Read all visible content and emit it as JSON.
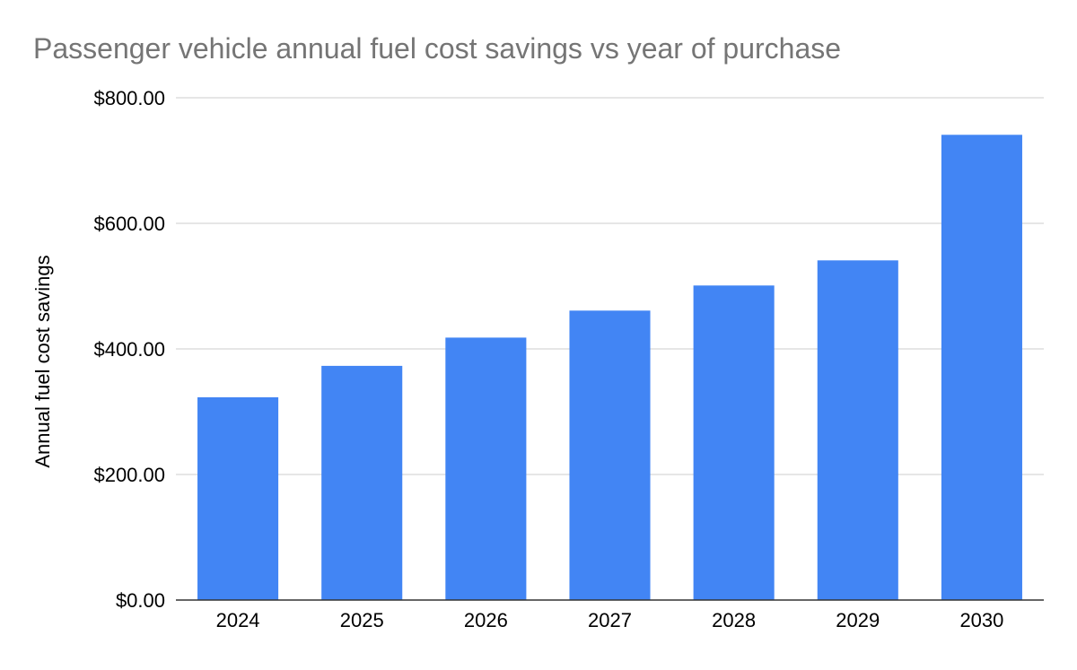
{
  "chart_data": {
    "type": "bar",
    "title": "Passenger vehicle annual fuel cost savings vs year of purchase",
    "xlabel": "",
    "ylabel": "Annual fuel cost savings",
    "categories": [
      "2024",
      "2025",
      "2026",
      "2027",
      "2028",
      "2029",
      "2030"
    ],
    "series": [
      {
        "values": [
          323,
          373,
          418,
          461,
          501,
          541,
          741
        ]
      }
    ],
    "ylim": [
      0,
      800
    ],
    "yticks": [
      0,
      200,
      400,
      600,
      800
    ],
    "ytick_labels": [
      "$0.00",
      "$200.00",
      "$400.00",
      "$600.00",
      "$800.00"
    ],
    "grid": true,
    "legend": "none",
    "colors": {
      "bar": "#4285f4",
      "title": "#757575",
      "grid": "#cccccc",
      "axis": "#333333",
      "text": "#000000"
    }
  }
}
